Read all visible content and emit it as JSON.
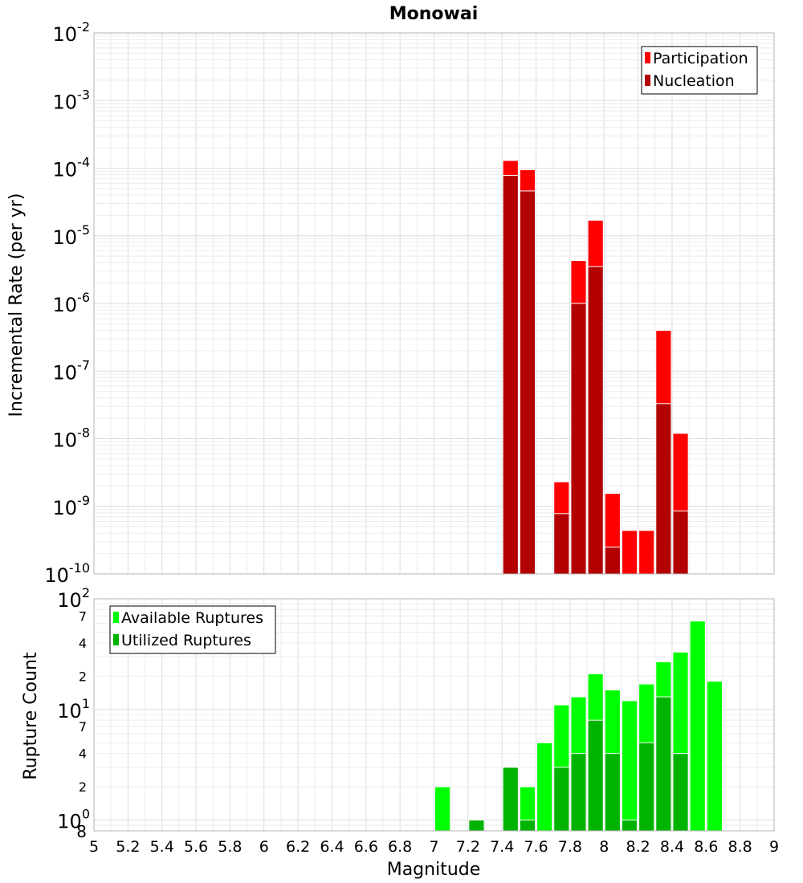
{
  "chart_data": {
    "type": "bar",
    "title": "Monowai",
    "xlabel": "Magnitude",
    "xlim": [
      5,
      9
    ],
    "x_ticks": [
      "5",
      "5.2",
      "5.4",
      "5.6",
      "5.8",
      "6",
      "6.2",
      "6.4",
      "6.6",
      "6.8",
      "7",
      "7.2",
      "7.4",
      "7.6",
      "7.8",
      "8",
      "8.2",
      "8.4",
      "8.6",
      "8.8",
      "9"
    ],
    "bin_width": 0.1,
    "grid": true,
    "panels": [
      {
        "id": "rate",
        "ylabel": "Incremental Rate (per yr)",
        "yscale": "log",
        "ylim": [
          1e-10,
          0.01
        ],
        "legend_placement": "top-right",
        "major_tick_bases": [
          "10",
          "10",
          "10",
          "10",
          "10",
          "10",
          "10",
          "10",
          "10"
        ],
        "major_tick_exponents": [
          "-10",
          "-9",
          "-8",
          "-7",
          "-6",
          "-5",
          "-4",
          "-3",
          "-2"
        ],
        "series": [
          {
            "name": "Participation",
            "color": "#ff0000",
            "x": [
              7.45,
              7.55,
              7.75,
              7.85,
              7.95,
              8.05,
              8.15,
              8.25,
              8.35,
              8.45
            ],
            "values": [
              0.00013,
              9.5e-05,
              2.3e-09,
              4.3e-06,
              1.7e-05,
              1.55e-09,
              4.4e-10,
              4.4e-10,
              4e-07,
              1.2e-08
            ]
          },
          {
            "name": "Nucleation",
            "color": "#b30000",
            "x": [
              7.45,
              7.55,
              7.75,
              7.85,
              7.95,
              8.05,
              8.35,
              8.45
            ],
            "values": [
              7.8e-05,
              4.6e-05,
              7.8e-10,
              1e-06,
              3.5e-06,
              2.5e-10,
              3.3e-08,
              8.5e-10
            ]
          }
        ]
      },
      {
        "id": "count",
        "ylabel": "Rupture Count",
        "yscale": "log",
        "ylim": [
          0.8,
          100
        ],
        "legend_placement": "top-left",
        "major_tick_bases": [
          "10",
          "10",
          "10"
        ],
        "major_tick_exponents": [
          "0",
          "1",
          "2"
        ],
        "minor_tick_labels": [
          "8",
          "2",
          "4",
          "7",
          "2",
          "4",
          "7"
        ],
        "series": [
          {
            "name": "Available Ruptures",
            "color": "#00ff00",
            "x": [
              7.05,
              7.25,
              7.45,
              7.55,
              7.65,
              7.75,
              7.85,
              7.95,
              8.05,
              8.15,
              8.25,
              8.35,
              8.45,
              8.55,
              8.65
            ],
            "values": [
              2,
              1,
              3,
              2,
              5,
              11,
              13,
              21,
              15,
              12,
              17,
              27,
              33,
              63,
              18
            ]
          },
          {
            "name": "Utilized Ruptures",
            "color": "#00b300",
            "x": [
              7.25,
              7.45,
              7.55,
              7.75,
              7.85,
              7.95,
              8.05,
              8.15,
              8.25,
              8.35,
              8.45
            ],
            "values": [
              1,
              3,
              1,
              3,
              4,
              8,
              4,
              1,
              5,
              13,
              4
            ]
          }
        ]
      }
    ]
  }
}
